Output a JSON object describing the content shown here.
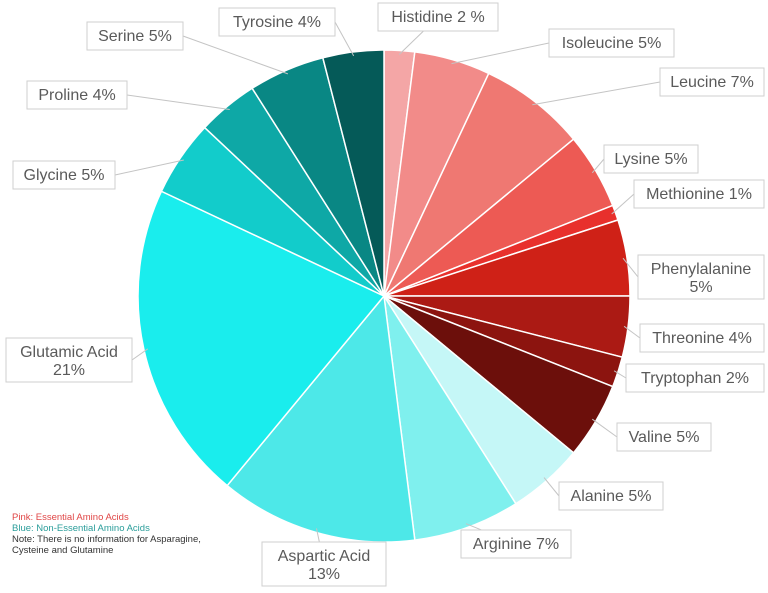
{
  "chart_data": {
    "type": "pie",
    "slices": [
      {
        "label": "Histidine 2 %",
        "value": 2,
        "color": "#f4a6a6",
        "group": "essential"
      },
      {
        "label": "Isoleucine 5%",
        "value": 5,
        "color": "#f28b89",
        "group": "essential"
      },
      {
        "label": "Leucine 7%",
        "value": 7,
        "color": "#ef7872",
        "group": "essential"
      },
      {
        "label": "Lysine 5%",
        "value": 5,
        "color": "#ed5a54",
        "group": "essential"
      },
      {
        "label": "Methionine 1%",
        "value": 1,
        "color": "#e8302c",
        "group": "essential"
      },
      {
        "label": "Phenylalanine 5%",
        "value": 5,
        "color": "#cf2117",
        "group": "essential"
      },
      {
        "label": "Threonine 4%",
        "value": 4,
        "color": "#ab1a14",
        "group": "essential"
      },
      {
        "label": "Tryptophan 2%",
        "value": 2,
        "color": "#8c140f",
        "group": "essential"
      },
      {
        "label": "Valine 5%",
        "value": 5,
        "color": "#6c0f0b",
        "group": "essential"
      },
      {
        "label": "Alanine 5%",
        "value": 5,
        "color": "#c5f7f7",
        "group": "non-essential"
      },
      {
        "label": "Arginine 7%",
        "value": 7,
        "color": "#7ff0ee",
        "group": "non-essential"
      },
      {
        "label": "Aspartic Acid 13%",
        "value": 13,
        "color": "#4de8e8",
        "group": "non-essential"
      },
      {
        "label": "Glutamic Acid 21%",
        "value": 21,
        "color": "#1aeded",
        "group": "non-essential"
      },
      {
        "label": "Glycine 5%",
        "value": 5,
        "color": "#12cccb",
        "group": "non-essential"
      },
      {
        "label": "Proline 4%",
        "value": 4,
        "color": "#0ea8a6",
        "group": "non-essential"
      },
      {
        "label": "Serine 5%",
        "value": 5,
        "color": "#098784",
        "group": "non-essential"
      },
      {
        "label": "Tyrosine 4%",
        "value": 4,
        "color": "#055a58",
        "group": "non-essential"
      }
    ]
  },
  "legend": {
    "essential": "Pink: Essential Amino Acids",
    "non_essential": "Blue: Non-Essential Amino Acids",
    "note": "Note: There is no information for Asparagine, Cysteine and Glutamine"
  }
}
